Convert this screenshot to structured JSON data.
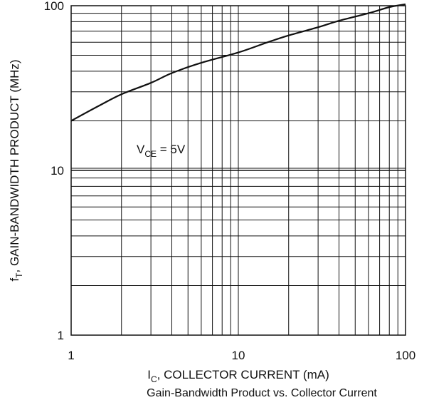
{
  "chart_data": {
    "type": "line",
    "title": "Gain-Bandwidth Product vs. Collector Current",
    "xlabel": {
      "main": "I",
      "sub": "C",
      "rest": ", COLLECTOR CURRENT (mA)"
    },
    "ylabel": {
      "main": "f",
      "sub": "T",
      "rest": ", GAIN-BANDWIDTH PRODUCT (MHz)"
    },
    "xscale": "log",
    "yscale": "log",
    "xlim": [
      1,
      100
    ],
    "ylim": [
      1,
      100
    ],
    "x_ticks": [
      {
        "value": 1,
        "label": "1"
      },
      {
        "value": 10,
        "label": "10"
      },
      {
        "value": 100,
        "label": "100"
      }
    ],
    "y_ticks": [
      {
        "value": 1,
        "label": "1"
      },
      {
        "value": 10,
        "label": "10"
      },
      {
        "value": 100,
        "label": "100"
      }
    ],
    "grid": true,
    "annotation": {
      "main": "V",
      "sub": "CE",
      "rest": " = 5V"
    },
    "series": [
      {
        "points": [
          {
            "x": 1,
            "y": 20
          },
          {
            "x": 1.5,
            "y": 25
          },
          {
            "x": 2,
            "y": 29
          },
          {
            "x": 3,
            "y": 34
          },
          {
            "x": 4,
            "y": 39
          },
          {
            "x": 6,
            "y": 45
          },
          {
            "x": 10,
            "y": 52
          },
          {
            "x": 15,
            "y": 60
          },
          {
            "x": 20,
            "y": 66
          },
          {
            "x": 30,
            "y": 74
          },
          {
            "x": 40,
            "y": 81
          },
          {
            "x": 60,
            "y": 90
          },
          {
            "x": 80,
            "y": 98
          },
          {
            "x": 100,
            "y": 102
          }
        ]
      }
    ]
  }
}
